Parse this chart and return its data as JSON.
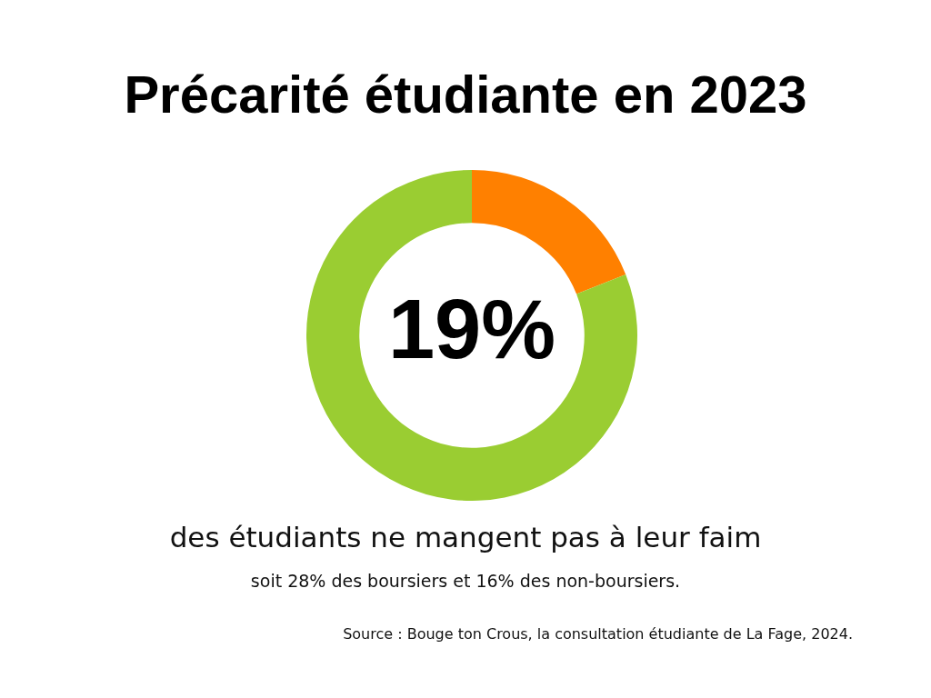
{
  "chart_data": {
    "type": "donut",
    "title": "Précarité étudiante en 2023",
    "categories": [
      null,
      null
    ],
    "values": [
      19,
      81
    ],
    "colors": [
      "#ff8000",
      "#9acd32"
    ],
    "value_labels": [
      "19%",
      null
    ],
    "legend": false,
    "annotations": [
      "des étudiants ne mangent pas à leur faim",
      "soit 28% des boursiers et 16% des non-boursiers.",
      "Source : Bouge ton Crous, la consultation étudiante de La Fage, 2024."
    ]
  }
}
